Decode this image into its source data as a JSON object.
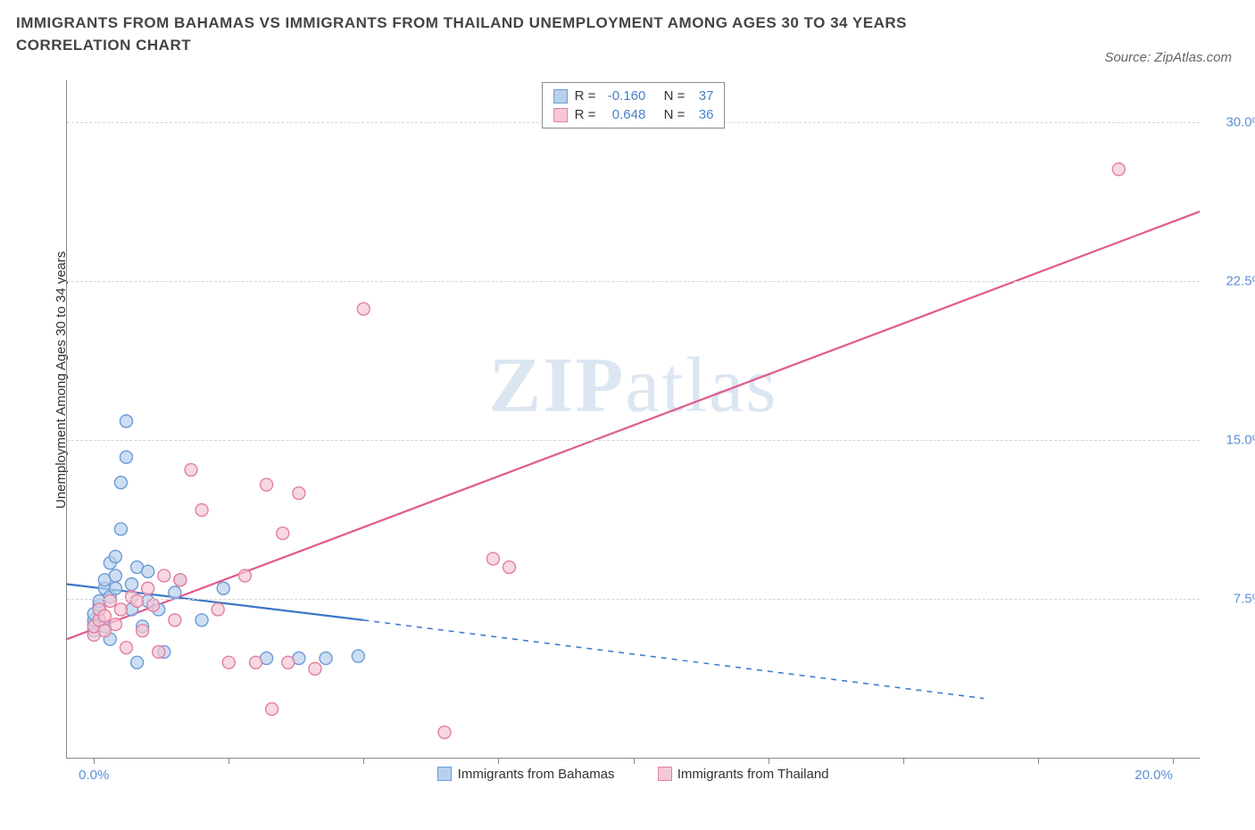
{
  "title": "IMMIGRANTS FROM BAHAMAS VS IMMIGRANTS FROM THAILAND UNEMPLOYMENT AMONG AGES 30 TO 34 YEARS CORRELATION CHART",
  "source": "Source: ZipAtlas.com",
  "watermark": "ZIPatlas",
  "y_axis_label": "Unemployment Among Ages 30 to 34 years",
  "chart": {
    "type": "scatter",
    "background_color": "#ffffff",
    "grid_color": "#d5d5d5",
    "axis_color": "#888888",
    "tick_label_color": "#5b8fd6",
    "xlim": [
      -0.5,
      20.5
    ],
    "ylim": [
      0,
      32
    ],
    "x_ticks_major": [
      0,
      20
    ],
    "x_ticks_minor": [
      2.5,
      5.0,
      7.5,
      10.0,
      12.5,
      15.0,
      17.5
    ],
    "x_tick_labels": {
      "0": "0.0%",
      "20": "20.0%"
    },
    "y_ticks": [
      7.5,
      15.0,
      22.5,
      30.0
    ],
    "y_tick_labels": {
      "7.5": "7.5%",
      "15.0": "15.0%",
      "22.5": "22.5%",
      "30.0": "30.0%"
    },
    "marker_radius": 7,
    "marker_stroke_width": 1.4,
    "series": [
      {
        "name": "Immigrants from Bahamas",
        "key": "bahamas",
        "fill_color": "#b9d0ec",
        "stroke_color": "#6a9bd8",
        "line_color": "#3a76c8",
        "R": "-0.160",
        "N": "37",
        "trend": {
          "x1": -0.5,
          "y1": 8.2,
          "x2": 5.0,
          "y2": 6.5,
          "dash_x2": 16.5,
          "dash_y2": 2.8
        },
        "points": [
          [
            0.0,
            6.0
          ],
          [
            0.0,
            6.3
          ],
          [
            0.0,
            6.5
          ],
          [
            0.0,
            6.8
          ],
          [
            0.1,
            7.0
          ],
          [
            0.1,
            7.2
          ],
          [
            0.1,
            7.4
          ],
          [
            0.2,
            6.2
          ],
          [
            0.2,
            8.0
          ],
          [
            0.2,
            8.4
          ],
          [
            0.3,
            5.6
          ],
          [
            0.3,
            7.6
          ],
          [
            0.3,
            9.2
          ],
          [
            0.4,
            8.0
          ],
          [
            0.4,
            8.6
          ],
          [
            0.4,
            9.5
          ],
          [
            0.5,
            10.8
          ],
          [
            0.5,
            13.0
          ],
          [
            0.6,
            14.2
          ],
          [
            0.6,
            15.9
          ],
          [
            0.7,
            7.0
          ],
          [
            0.7,
            8.2
          ],
          [
            0.8,
            4.5
          ],
          [
            0.8,
            9.0
          ],
          [
            0.9,
            6.2
          ],
          [
            1.0,
            7.4
          ],
          [
            1.0,
            8.8
          ],
          [
            1.2,
            7.0
          ],
          [
            1.3,
            5.0
          ],
          [
            1.5,
            7.8
          ],
          [
            1.6,
            8.4
          ],
          [
            2.0,
            6.5
          ],
          [
            2.4,
            8.0
          ],
          [
            3.2,
            4.7
          ],
          [
            3.8,
            4.7
          ],
          [
            4.3,
            4.7
          ],
          [
            4.9,
            4.8
          ]
        ]
      },
      {
        "name": "Immigrants from Thailand",
        "key": "thailand",
        "fill_color": "#f4c8d4",
        "stroke_color": "#e37fa0",
        "line_color": "#e05a8a",
        "R": "0.648",
        "N": "36",
        "trend": {
          "x1": -0.5,
          "y1": 5.6,
          "x2": 20.5,
          "y2": 25.8
        },
        "points": [
          [
            0.0,
            5.8
          ],
          [
            0.0,
            6.2
          ],
          [
            0.1,
            6.5
          ],
          [
            0.1,
            7.0
          ],
          [
            0.2,
            6.0
          ],
          [
            0.2,
            6.7
          ],
          [
            0.3,
            7.4
          ],
          [
            0.4,
            6.3
          ],
          [
            0.5,
            7.0
          ],
          [
            0.6,
            5.2
          ],
          [
            0.7,
            7.6
          ],
          [
            0.8,
            7.4
          ],
          [
            0.9,
            6.0
          ],
          [
            1.0,
            8.0
          ],
          [
            1.1,
            7.2
          ],
          [
            1.2,
            5.0
          ],
          [
            1.3,
            8.6
          ],
          [
            1.5,
            6.5
          ],
          [
            1.6,
            8.4
          ],
          [
            1.8,
            13.6
          ],
          [
            2.0,
            11.7
          ],
          [
            2.3,
            7.0
          ],
          [
            2.5,
            4.5
          ],
          [
            2.8,
            8.6
          ],
          [
            3.0,
            4.5
          ],
          [
            3.2,
            12.9
          ],
          [
            3.3,
            2.3
          ],
          [
            3.5,
            10.6
          ],
          [
            3.6,
            4.5
          ],
          [
            3.8,
            12.5
          ],
          [
            4.1,
            4.2
          ],
          [
            5.0,
            21.2
          ],
          [
            6.5,
            1.2
          ],
          [
            7.4,
            9.4
          ],
          [
            7.7,
            9.0
          ],
          [
            19.0,
            27.8
          ]
        ]
      }
    ],
    "legend_top": {
      "rows": [
        {
          "swatch": "bahamas",
          "r_label": "R =",
          "r_val": "-0.160",
          "n_label": "N =",
          "n_val": "37"
        },
        {
          "swatch": "thailand",
          "r_label": "R =",
          "r_val": "0.648",
          "n_label": "N =",
          "n_val": "36"
        }
      ]
    },
    "legend_bottom": [
      {
        "swatch": "bahamas",
        "label": "Immigrants from Bahamas"
      },
      {
        "swatch": "thailand",
        "label": "Immigrants from Thailand"
      }
    ]
  }
}
